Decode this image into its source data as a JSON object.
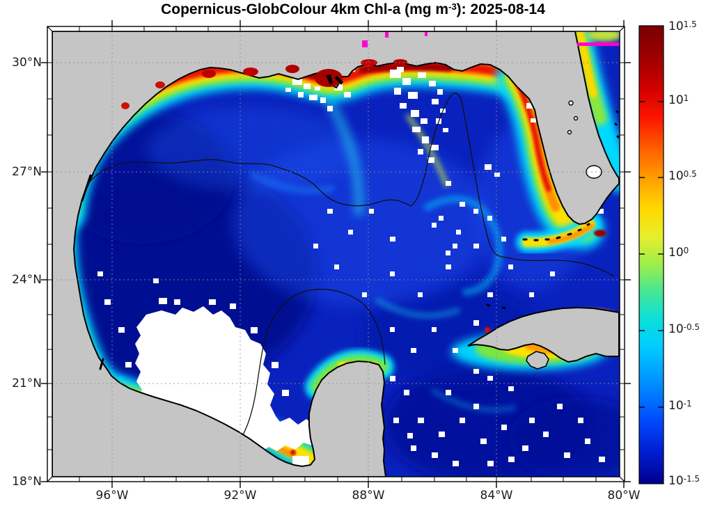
{
  "figure": {
    "title": {
      "prefix": "Copernicus-GlobColour 4km Chl-a (mg m",
      "superscript": "-3",
      "suffix": "): 2025-08-14"
    }
  },
  "map": {
    "latitude_tick_labels": [
      "30°N",
      "27°N",
      "24°N",
      "21°N",
      "18°N"
    ],
    "longitude_tick_labels": [
      "96°W",
      "92°W",
      "88°W",
      "84°W",
      "80°W"
    ],
    "land_color": "#c5c5c5",
    "missing_data_color": "#ffffff",
    "deep_water_color": "#000d8e",
    "artifact_line_color": "#ff00d0"
  },
  "colorbar": {
    "base": "10",
    "exponents": [
      "1.5",
      "1",
      "0.5",
      "0",
      "-0.5",
      "-1",
      "-1.5"
    ],
    "top_color": "#7a0000",
    "bottom_color": "#00008b",
    "colormap": "jet"
  },
  "chart_data": {
    "type": "heatmap",
    "title": "Copernicus-GlobColour 4km Chl-a (mg m-3): 2025-08-14",
    "variable": "Chlorophyll-a concentration",
    "units": "mg m-3",
    "date": "2025-08-14",
    "region": "Gulf of Mexico",
    "x_axis": {
      "label": "longitude",
      "tick_labels": [
        "96°W",
        "92°W",
        "88°W",
        "84°W",
        "80°W"
      ],
      "range_deg_west": [
        98.4,
        79.8
      ],
      "grid": "dashed"
    },
    "y_axis": {
      "label": "latitude",
      "tick_labels": [
        "30°N",
        "27°N",
        "24°N",
        "21°N",
        "18°N"
      ],
      "range_deg_north": [
        18.0,
        30.8
      ],
      "grid": "dashed"
    },
    "colorbar": {
      "scale": "log10",
      "tick_labels": [
        "10^1.5",
        "10^1",
        "10^0.5",
        "10^0",
        "10^-0.5",
        "10^-1",
        "10^-1.5"
      ],
      "value_range_mg_m3": [
        0.0316,
        31.6
      ],
      "colormap": "jet",
      "position": "right"
    },
    "qualitative_values": [
      {
        "feature": "Louisiana-Texas shelf / Mississippi delta coastal band",
        "chl_mg_m3": "10-30 (red to dark red)"
      },
      {
        "feature": "West Florida nearshore band",
        "chl_mg_m3": "3-30 (yellow to red)"
      },
      {
        "feature": "Florida Atlantic coast band (top right)",
        "chl_mg_m3": "1-10 (green-yellow)"
      },
      {
        "feature": "Open Gulf deep basin",
        "chl_mg_m3": "0.03-0.1 (dark blue)"
      },
      {
        "feature": "Eastern Gulf / Loop Current swirls",
        "chl_mg_m3": "0.1-0.5 (blue-cyan)"
      },
      {
        "feature": "Campeche Bank and south Bay of Campeche coast",
        "chl_mg_m3": "1-10 (cyan-yellow-orange)"
      },
      {
        "feature": "Gulf of Batabano, south of Cuba",
        "chl_mg_m3": "2-15 (yellow-orange)"
      },
      {
        "feature": "Southwest Gulf (Bay of Campeche)",
        "chl_mg_m3": "no data (cloud, white)"
      },
      {
        "feature": "Magenta artifact line near 29.5N off Florida east coast",
        "chl_mg_m3": "saturated/flagged"
      }
    ],
    "overlays": [
      "black coastline",
      "thin black shelf-edge (200 m isobath) contour",
      "dashed graticule every 3 deg lat / 4 deg lon"
    ]
  }
}
